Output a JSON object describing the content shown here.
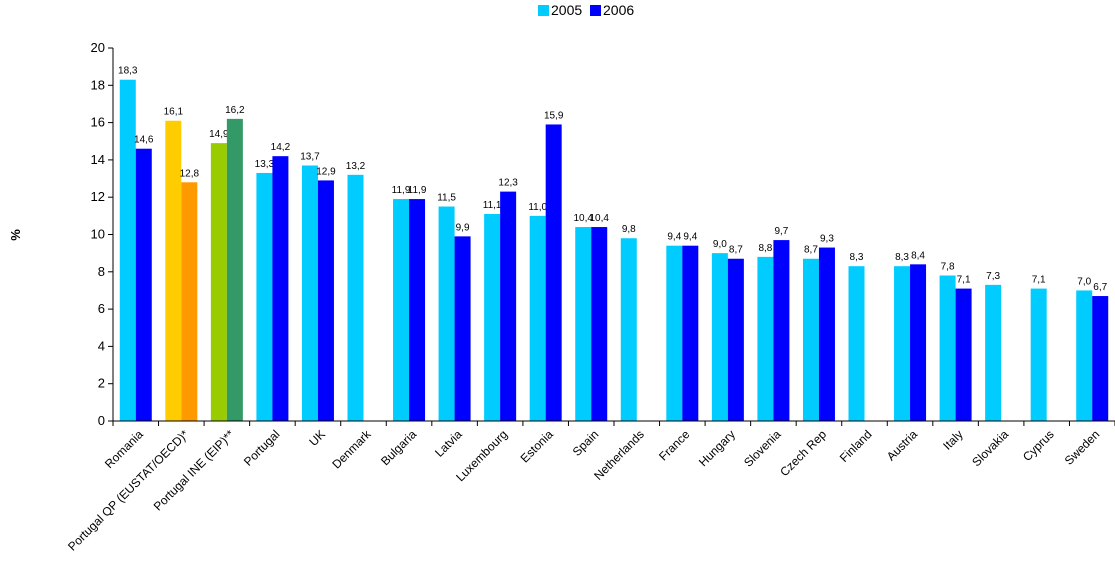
{
  "chart_data": {
    "type": "bar",
    "title": "",
    "xlabel": "",
    "ylabel": "%",
    "ylim": [
      0,
      20
    ],
    "yticks": [
      0,
      2,
      4,
      6,
      8,
      10,
      12,
      14,
      16,
      18,
      20
    ],
    "grid": false,
    "legend_position": "top-center",
    "categories": [
      "Romania",
      "Portugal QP (EUSTAT/OECD)*",
      "Portugal INE (EIP)**",
      "Portugal",
      "UK",
      "Denmark",
      "Bulgaria",
      "Latvia",
      "Luxembourg",
      "Estonia",
      "Spain",
      "Netherlands",
      "France",
      "Hungary",
      "Slovenia",
      "Czech Rep",
      "Finland",
      "Austria",
      "Italy",
      "Slovakia",
      "Cyprus",
      "Sweden"
    ],
    "series": [
      {
        "name": "2005",
        "color": "#00ccff",
        "values": [
          18.3,
          16.1,
          14.9,
          13.3,
          13.7,
          13.2,
          11.9,
          11.5,
          11.1,
          11.0,
          10.4,
          9.8,
          9.4,
          9.0,
          8.8,
          8.7,
          8.3,
          8.3,
          7.8,
          7.3,
          7.1,
          7.0
        ],
        "labels": [
          "18,3",
          "16,1",
          "14,9",
          "13,3",
          "13,7",
          "13,2",
          "11,9",
          "11,5",
          "11,1",
          "11,0",
          "10,4",
          "9,8",
          "9,4",
          "9,0",
          "8,8",
          "8,7",
          "8,3",
          "8,3",
          "7,8",
          "7,3",
          "7,1",
          "7,0"
        ]
      },
      {
        "name": "2006",
        "color": "#0000ff",
        "values": [
          14.6,
          12.8,
          16.2,
          14.2,
          12.9,
          null,
          11.9,
          9.9,
          12.3,
          15.9,
          10.4,
          null,
          9.4,
          8.7,
          9.7,
          9.3,
          null,
          8.4,
          7.1,
          null,
          null,
          6.7
        ],
        "labels": [
          "14,6",
          "12,8",
          "16,2",
          "14,2",
          "12,9",
          null,
          "11,9",
          "9,9",
          "12,3",
          "15,9",
          "10,4",
          null,
          "9,4",
          "8,7",
          "9,7",
          "9,3",
          null,
          "8,4",
          "7,1",
          null,
          null,
          "6,7"
        ]
      }
    ],
    "bar_color_overrides": [
      {
        "category_index": 1,
        "series_index": 0,
        "color": "#ffcc00"
      },
      {
        "category_index": 1,
        "series_index": 1,
        "color": "#ff9900"
      },
      {
        "category_index": 2,
        "series_index": 0,
        "color": "#99cc00"
      },
      {
        "category_index": 2,
        "series_index": 1,
        "color": "#339966"
      }
    ]
  }
}
